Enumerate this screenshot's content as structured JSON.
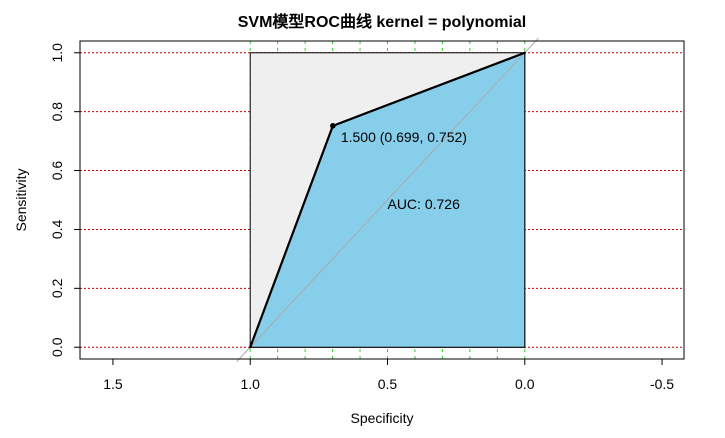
{
  "chart_data": {
    "type": "line",
    "title": "SVM模型ROC曲线 kernel = polynomial",
    "xlabel": "Specificity",
    "ylabel": "Sensitivity",
    "xlim": [
      1.62,
      -0.58
    ],
    "ylim": [
      -0.04,
      1.04
    ],
    "x_ticks": [
      1.5,
      1.0,
      0.5,
      0.0,
      -0.5
    ],
    "x_tick_labels": [
      "1.5",
      "1.0",
      "0.5",
      "0.0",
      "-0.5"
    ],
    "y_ticks": [
      0.0,
      0.2,
      0.4,
      0.6,
      0.8,
      1.0
    ],
    "y_tick_labels": [
      "0.0",
      "0.2",
      "0.4",
      "0.6",
      "0.8",
      "1.0"
    ],
    "horizontal_grid": [
      0.0,
      0.2,
      0.4,
      0.6,
      0.8,
      1.0
    ],
    "vertical_grid": [
      1.0,
      0.9,
      0.8,
      0.7,
      0.6,
      0.5,
      0.4,
      0.3,
      0.2,
      0.1,
      0.0
    ],
    "series": [
      {
        "x": [
          1.0,
          0.699,
          0.0
        ],
        "y": [
          0.0,
          0.752,
          1.0
        ]
      }
    ],
    "best_threshold": {
      "x": 0.699,
      "y": 0.752,
      "label": "1.500 (0.699, 0.752)"
    },
    "auc_label": "AUC: 0.726",
    "colors": {
      "auc_fill": "#87ceeb",
      "max_region_fill": "#efefef",
      "grid_horizontal": "#cc0000",
      "grid_vertical": "#33cc33",
      "diagonal": "#aaaaaa",
      "curve": "#000000"
    }
  }
}
